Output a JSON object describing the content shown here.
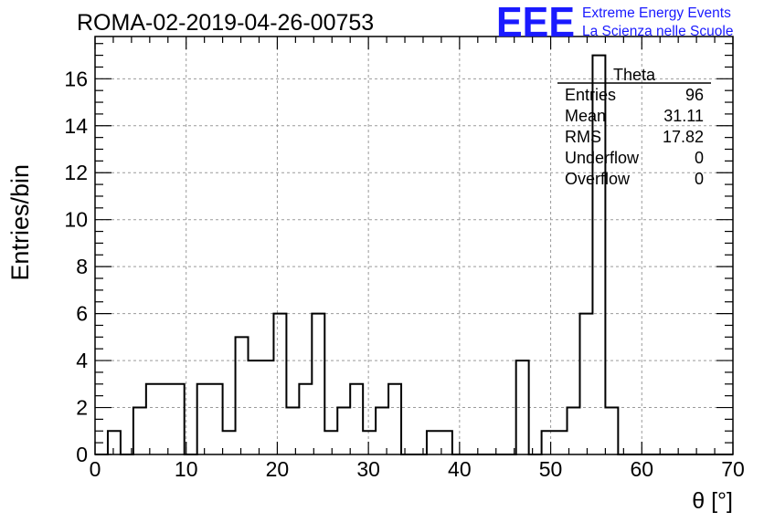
{
  "header": {
    "run_title": "ROMA-02-2019-04-26-00753",
    "logo_text": "EEE",
    "project_line1": "Extreme Energy Events",
    "project_line2": "La Scienza nelle Scuole",
    "logo_color": "#1a1aff"
  },
  "stats_box": {
    "name": "Theta",
    "rows": [
      {
        "label": "Entries",
        "value": "96"
      },
      {
        "label": "Mean",
        "value": "31.11"
      },
      {
        "label": "RMS",
        "value": "17.82"
      },
      {
        "label": "Underflow",
        "value": "0"
      },
      {
        "label": "Overflow",
        "value": "0"
      }
    ]
  },
  "chart_data": {
    "type": "histogram",
    "title": "ROMA-02-2019-04-26-00753",
    "xlabel": "θ [°]",
    "ylabel": "Entries/bin",
    "xlim": [
      0,
      70
    ],
    "ylim": [
      0,
      17.8
    ],
    "x_ticks": [
      0,
      10,
      20,
      30,
      40,
      50,
      60,
      70
    ],
    "y_ticks": [
      0,
      2,
      4,
      6,
      8,
      10,
      12,
      14,
      16
    ],
    "grid": true,
    "bin_width": 1.4,
    "bins": 50,
    "values": [
      0,
      1,
      0,
      2,
      3,
      3,
      3,
      0,
      3,
      3,
      1,
      5,
      4,
      4,
      6,
      2,
      3,
      6,
      1,
      2,
      3,
      1,
      2,
      3,
      0,
      0,
      1,
      1,
      0,
      0,
      0,
      0,
      0,
      4,
      0,
      1,
      1,
      2,
      6,
      17,
      2,
      0,
      0,
      0,
      0,
      0,
      0,
      0,
      0,
      0
    ],
    "line_color": "#000000",
    "grid_color": "#9a9a9a"
  }
}
